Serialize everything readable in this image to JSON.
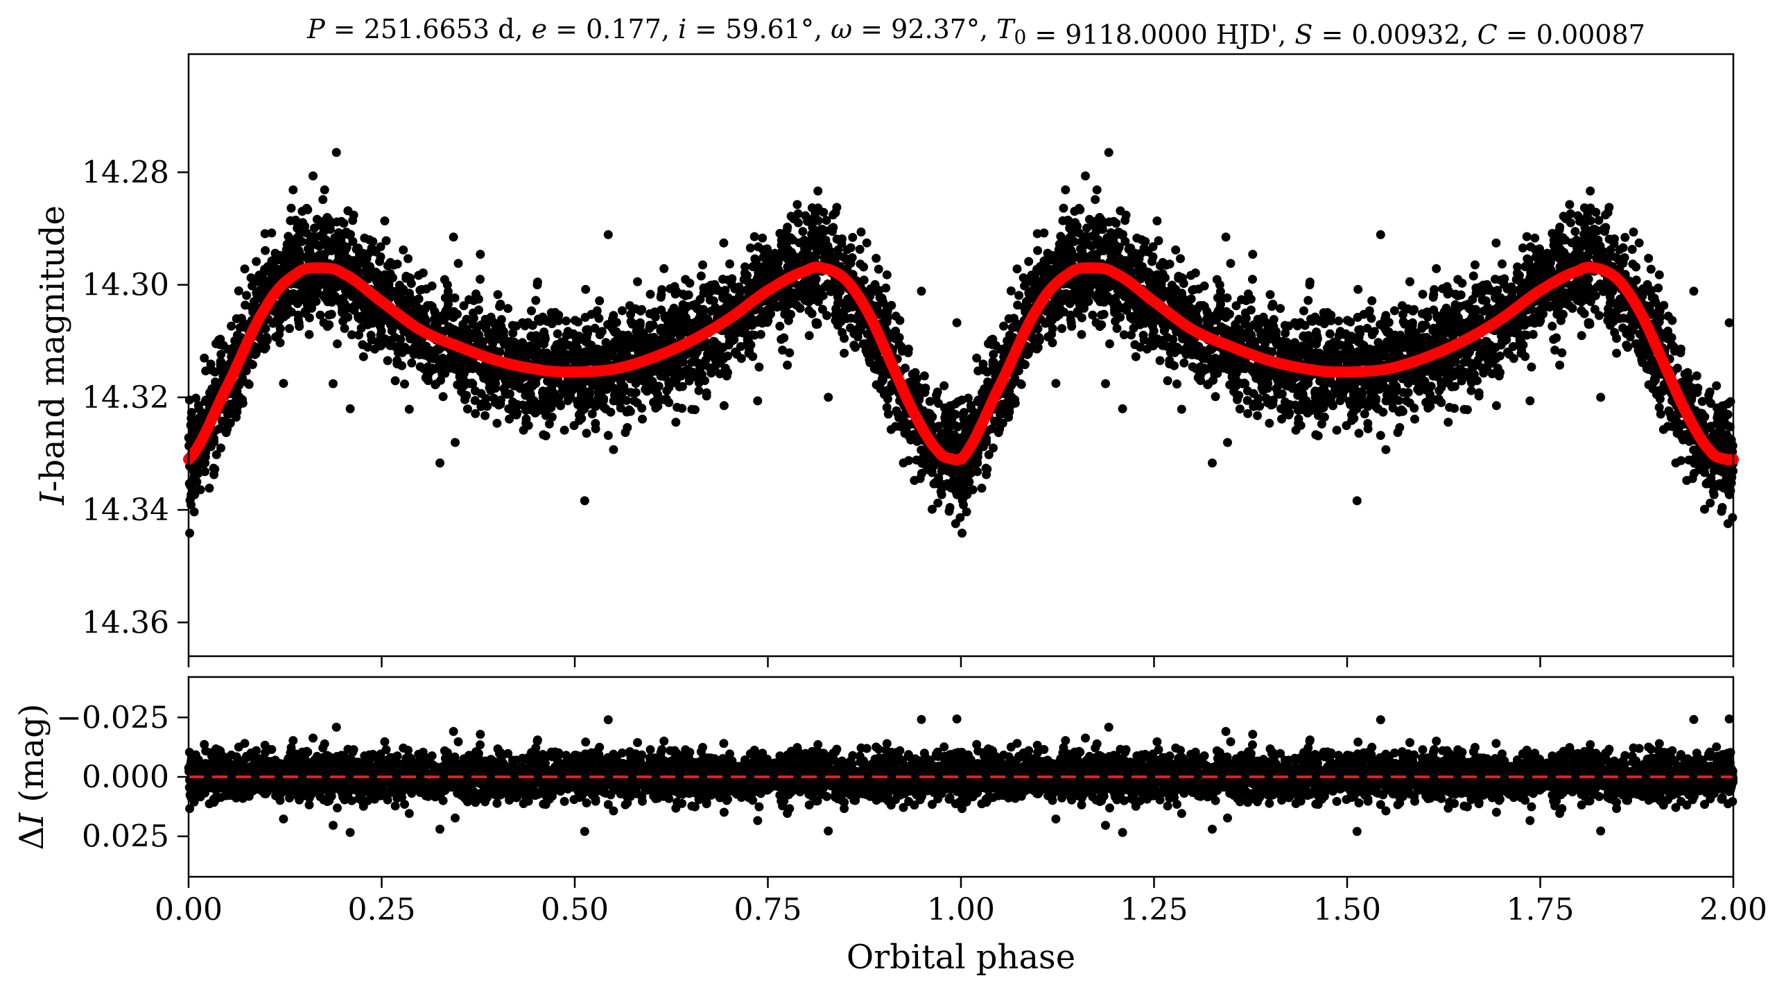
{
  "figure": {
    "title": "P = 251.6653 d, e = 0.177, i = 59.61°, ω = 92.37°, T0 = 9118.0000 HJD', S = 0.00932, C = 0.00087",
    "title_parts": [
      {
        "text": "P",
        "italic": true
      },
      {
        "text": " = 251.6653 d, "
      },
      {
        "text": "e",
        "italic": true
      },
      {
        "text": " = 0.177, "
      },
      {
        "text": "i",
        "italic": true
      },
      {
        "text": " = 59.61°, "
      },
      {
        "text": "ω",
        "italic": true
      },
      {
        "text": " = 92.37°, "
      },
      {
        "text": "T",
        "italic": true
      },
      {
        "text": "0",
        "sub": true
      },
      {
        "text": " = 9118.0000 HJD', "
      },
      {
        "text": "S",
        "italic": true
      },
      {
        "text": " = 0.00932, "
      },
      {
        "text": "C",
        "italic": true
      },
      {
        "text": " = 0.00087"
      }
    ]
  },
  "colors": {
    "points": "#000000",
    "model": "#ff0000",
    "zero_line": "#dd2222",
    "axes": "#000000"
  },
  "chart_data": [
    {
      "type": "scatter",
      "panel": "top",
      "xlabel": "",
      "ylabel": "I-band magnitude",
      "ylabel_parts": [
        {
          "text": "I",
          "italic": true
        },
        {
          "text": "-band magnitude"
        }
      ],
      "xlim": [
        0.0,
        2.0
      ],
      "ylim": [
        14.366,
        14.259
      ],
      "y_inverted": true,
      "y_ticks": [
        14.28,
        14.3,
        14.32,
        14.34,
        14.36
      ],
      "y_tick_labels": [
        "14.28",
        "14.30",
        "14.32",
        "14.34",
        "14.36"
      ],
      "x_ticks": [
        0.0,
        0.25,
        0.5,
        0.75,
        1.0,
        1.25,
        1.5,
        1.75,
        2.0
      ],
      "x_tick_labels_shown": false,
      "grid": false,
      "legend": "none",
      "model_curve": {
        "description_free": true,
        "phase": [
          0.0,
          0.05,
          0.1,
          0.14,
          0.17,
          0.2,
          0.25,
          0.3,
          0.35,
          0.4,
          0.45,
          0.49,
          0.55,
          0.6,
          0.65,
          0.7,
          0.75,
          0.8,
          0.82,
          0.85,
          0.88,
          0.91,
          0.94,
          0.97,
          0.99,
          1.0
        ],
        "magnitude": [
          14.331,
          14.318,
          14.304,
          14.298,
          14.297,
          14.298,
          14.303,
          14.308,
          14.311,
          14.3135,
          14.315,
          14.3155,
          14.315,
          14.313,
          14.31,
          14.306,
          14.301,
          14.2975,
          14.297,
          14.299,
          14.305,
          14.314,
          14.323,
          14.3295,
          14.331,
          14.331
        ],
        "repeats": [
          0.0,
          1.0
        ]
      },
      "scatter": {
        "n_points_per_cycle": 3200,
        "scatter_sigma": 0.0055,
        "outlier_extent": [
          14.272,
          14.356
        ]
      }
    },
    {
      "type": "scatter",
      "panel": "bottom",
      "xlabel": "Orbital phase",
      "ylabel": "ΔI (mag)",
      "ylabel_parts": [
        {
          "text": "Δ"
        },
        {
          "text": "I",
          "italic": true
        },
        {
          "text": " (mag)"
        }
      ],
      "xlim": [
        0.0,
        2.0
      ],
      "ylim": [
        0.042,
        -0.042
      ],
      "y_inverted": true,
      "y_ticks": [
        -0.025,
        0.0,
        0.025
      ],
      "y_tick_labels": [
        "−0.025",
        "0.000",
        "0.025"
      ],
      "x_ticks": [
        0.0,
        0.25,
        0.5,
        0.75,
        1.0,
        1.25,
        1.5,
        1.75,
        2.0
      ],
      "x_tick_labels": [
        "0.00",
        "0.25",
        "0.50",
        "0.75",
        "1.00",
        "1.25",
        "1.50",
        "1.75",
        "2.00"
      ],
      "grid": false,
      "legend": "none",
      "zero_line": {
        "y": 0.0,
        "style": "dashed"
      },
      "residuals": {
        "scatter_sigma": 0.0055,
        "extent": [
          -0.031,
          0.031
        ]
      }
    }
  ]
}
